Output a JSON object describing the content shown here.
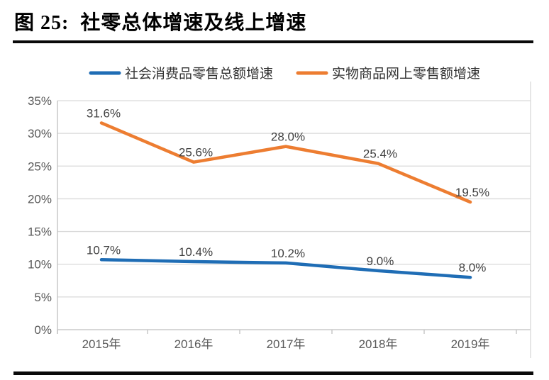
{
  "figure": {
    "title_prefix": "图 25:",
    "title_text": "社零总体增速及线上增速"
  },
  "chart_data": {
    "type": "line",
    "title": "社零总体增速及线上增速",
    "categories": [
      "2015年",
      "2016年",
      "2017年",
      "2018年",
      "2019年"
    ],
    "series": [
      {
        "name": "社会消费品零售总额增速",
        "color": "#1F6DB5",
        "values": [
          10.7,
          10.4,
          10.2,
          9.0,
          8.0
        ],
        "point_labels": [
          "10.7%",
          "10.4%",
          "10.2%",
          "9.0%",
          "8.0%"
        ]
      },
      {
        "name": "实物商品网上零售额增速",
        "color": "#ED7D31",
        "values": [
          31.6,
          25.6,
          28.0,
          25.4,
          19.5
        ],
        "point_labels": [
          "31.6%",
          "25.6%",
          "28.0%",
          "25.4%",
          "19.5%"
        ]
      }
    ],
    "y_axis": {
      "min": 0,
      "max": 35,
      "step": 5,
      "tick_labels": [
        "0%",
        "5%",
        "10%",
        "15%",
        "20%",
        "25%",
        "30%",
        "35%"
      ]
    },
    "x_axis_label": "",
    "y_axis_label": "",
    "legend_position": "top",
    "grid": true
  },
  "colors": {
    "series_blue": "#1F6DB5",
    "series_orange": "#ED7D31",
    "gridline": "#D9D9D9",
    "axis_line": "#BFBFBF",
    "axis_text": "#595959",
    "data_label_text": "#404040",
    "legend_text": "#333333",
    "rule": "#0A0A0A"
  }
}
